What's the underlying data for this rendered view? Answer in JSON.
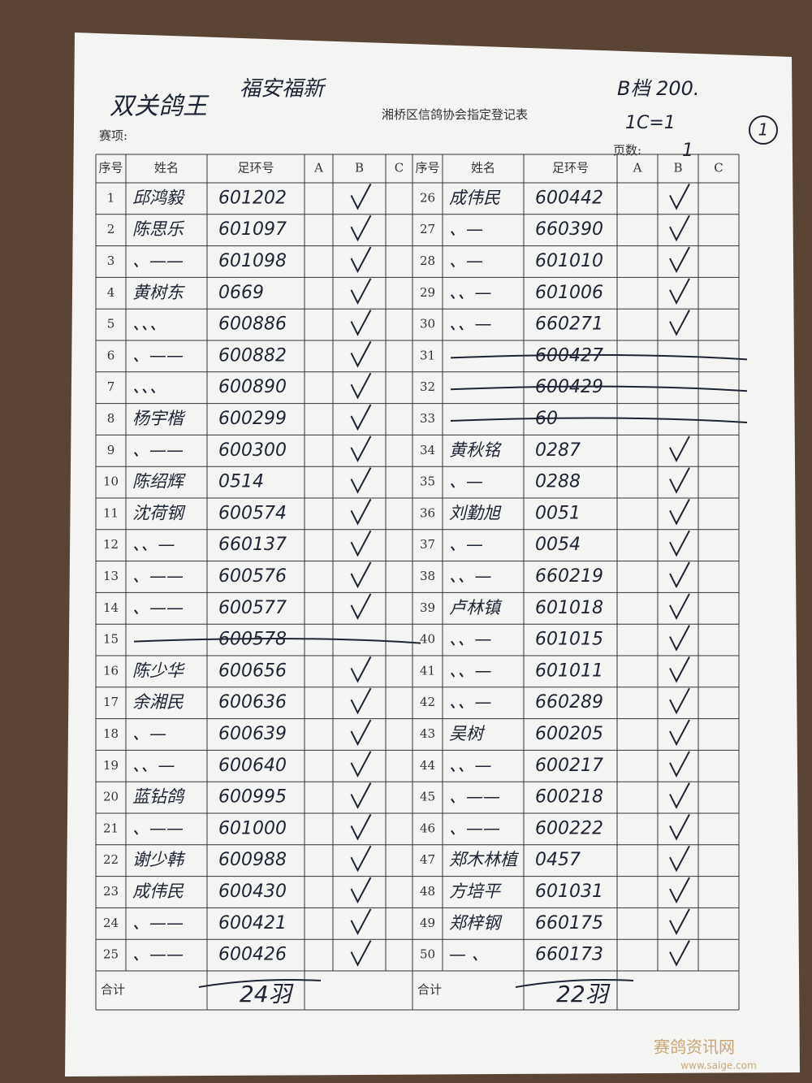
{
  "header": {
    "handwritten_title": "双关鸽王",
    "club": "福安福新",
    "grade": "B档 200.",
    "note": "1C=1",
    "page_circle": "1",
    "title": "湘桥区信鸽协会指定登记表",
    "event_label": "赛项:",
    "page_label": "页数:",
    "page_number": "1"
  },
  "table": {
    "columns": [
      "序号",
      "姓名",
      "足环号",
      "A",
      "B",
      "C"
    ],
    "rows": [
      {
        "no": 1,
        "name": "邱鸿毅",
        "ring": "601202",
        "b": true
      },
      {
        "no": 2,
        "name": "陈思乐",
        "ring": "601097",
        "b": true
      },
      {
        "no": 3,
        "name": "、——",
        "ring": "601098",
        "b": true
      },
      {
        "no": 4,
        "name": "黄树东",
        "ring": "0669",
        "b": true
      },
      {
        "no": 5,
        "name": "、、、",
        "ring": "600886",
        "b": true
      },
      {
        "no": 6,
        "name": "、——",
        "ring": "600882",
        "b": true
      },
      {
        "no": 7,
        "name": "、、、",
        "ring": "600890",
        "b": true
      },
      {
        "no": 8,
        "name": "杨宇楷",
        "ring": "600299",
        "b": true
      },
      {
        "no": 9,
        "name": "、——",
        "ring": "600300",
        "b": true
      },
      {
        "no": 10,
        "name": "陈绍辉",
        "ring": "0514",
        "b": true
      },
      {
        "no": 11,
        "name": "沈荷钢",
        "ring": "600574",
        "b": true
      },
      {
        "no": 12,
        "name": "、、—",
        "ring": "660137",
        "b": true
      },
      {
        "no": 13,
        "name": "、——",
        "ring": "600576",
        "b": true
      },
      {
        "no": 14,
        "name": "、——",
        "ring": "600577",
        "b": true
      },
      {
        "no": 15,
        "ring": "600578",
        "b": false,
        "struck": true
      },
      {
        "no": 16,
        "name": "陈少华",
        "ring": "600656",
        "b": true
      },
      {
        "no": 17,
        "name": "余湘民",
        "ring": "600636",
        "b": true
      },
      {
        "no": 18,
        "name": "、—",
        "ring": "600639",
        "b": true
      },
      {
        "no": 19,
        "name": "、、—",
        "ring": "600640",
        "b": true
      },
      {
        "no": 20,
        "name": "蓝钻鸽",
        "ring": "600995",
        "b": true
      },
      {
        "no": 21,
        "name": "、——",
        "ring": "601000",
        "b": true
      },
      {
        "no": 22,
        "name": "谢少韩",
        "ring": "600988",
        "b": true
      },
      {
        "no": 23,
        "name": "成伟民",
        "ring": "600430",
        "b": true
      },
      {
        "no": 24,
        "name": "、——",
        "ring": "600421",
        "b": true
      },
      {
        "no": 25,
        "name": "、——",
        "ring": "600426",
        "b": true
      },
      {
        "no": 26,
        "name": "成伟民",
        "ring": "600442",
        "b": true
      },
      {
        "no": 27,
        "name": "、—",
        "ring": "660390",
        "b": true
      },
      {
        "no": 28,
        "name": "、—",
        "ring": "601010",
        "b": true
      },
      {
        "no": 29,
        "name": "、、—",
        "ring": "601006",
        "b": true
      },
      {
        "no": 30,
        "name": "、、—",
        "ring": "660271",
        "b": true
      },
      {
        "no": 31,
        "ring": "600427",
        "b": false,
        "struck": true
      },
      {
        "no": 32,
        "ring": "600429",
        "b": false,
        "struck": true
      },
      {
        "no": 33,
        "ring": "60",
        "b": false,
        "struck": true
      },
      {
        "no": 34,
        "name": "黄秋铭",
        "ring": "0287",
        "b": true
      },
      {
        "no": 35,
        "name": "、—",
        "ring": "0288",
        "b": true
      },
      {
        "no": 36,
        "name": "刘勤旭",
        "ring": "0051",
        "b": true
      },
      {
        "no": 37,
        "name": "、—",
        "ring": "0054",
        "b": true
      },
      {
        "no": 38,
        "name": "、、—",
        "ring": "660219",
        "b": true
      },
      {
        "no": 39,
        "name": "卢林镇",
        "ring": "601018",
        "b": true
      },
      {
        "no": 40,
        "name": "、、—",
        "ring": "601015",
        "b": true
      },
      {
        "no": 41,
        "name": "、、—",
        "ring": "601011",
        "b": true
      },
      {
        "no": 42,
        "name": "、、—",
        "ring": "660289",
        "b": true
      },
      {
        "no": 43,
        "name": "吴树",
        "ring": "600205",
        "b": true
      },
      {
        "no": 44,
        "name": "、、—",
        "ring": "600217",
        "b": true
      },
      {
        "no": 45,
        "name": "、——",
        "ring": "600218",
        "b": true
      },
      {
        "no": 46,
        "name": "、——",
        "ring": "600222",
        "b": true
      },
      {
        "no": 47,
        "name": "郑木林植",
        "ring": "0457",
        "b": true
      },
      {
        "no": 48,
        "name": "方培平",
        "ring": "601031",
        "b": true
      },
      {
        "no": 49,
        "name": "郑梓钢",
        "ring": "660175",
        "b": true
      },
      {
        "no": 50,
        "name": "— 、",
        "ring": "660173",
        "b": true
      }
    ],
    "total_label": "合计",
    "totals": [
      "24羽",
      "22羽"
    ]
  },
  "watermark": {
    "name": "赛鸽资讯网",
    "url": "www.saige.com"
  }
}
